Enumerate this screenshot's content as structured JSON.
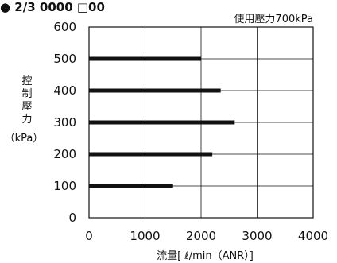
{
  "header_text": "● 2/3 0000 □00",
  "chart_data": {
    "type": "bar",
    "orientation": "horizontal",
    "annotation": "使用壓力700kPa",
    "ylabel_chars": [
      "控",
      "制",
      "壓",
      "力"
    ],
    "ylabel_unit": "（kPa）",
    "xlabel": "流量[ ℓ/min（ANR）]",
    "categories": [
      "100",
      "200",
      "300",
      "400",
      "500"
    ],
    "values": [
      1500,
      2200,
      2600,
      2350,
      2000
    ],
    "x_ticks": [
      "0",
      "1000",
      "2000",
      "3000",
      "4000"
    ],
    "y_ticks": [
      "0",
      "100",
      "200",
      "300",
      "400",
      "500",
      "600"
    ],
    "xlim": [
      0,
      4000
    ],
    "ylim": [
      0,
      600
    ],
    "grid": true,
    "bar_color": "#111111"
  }
}
